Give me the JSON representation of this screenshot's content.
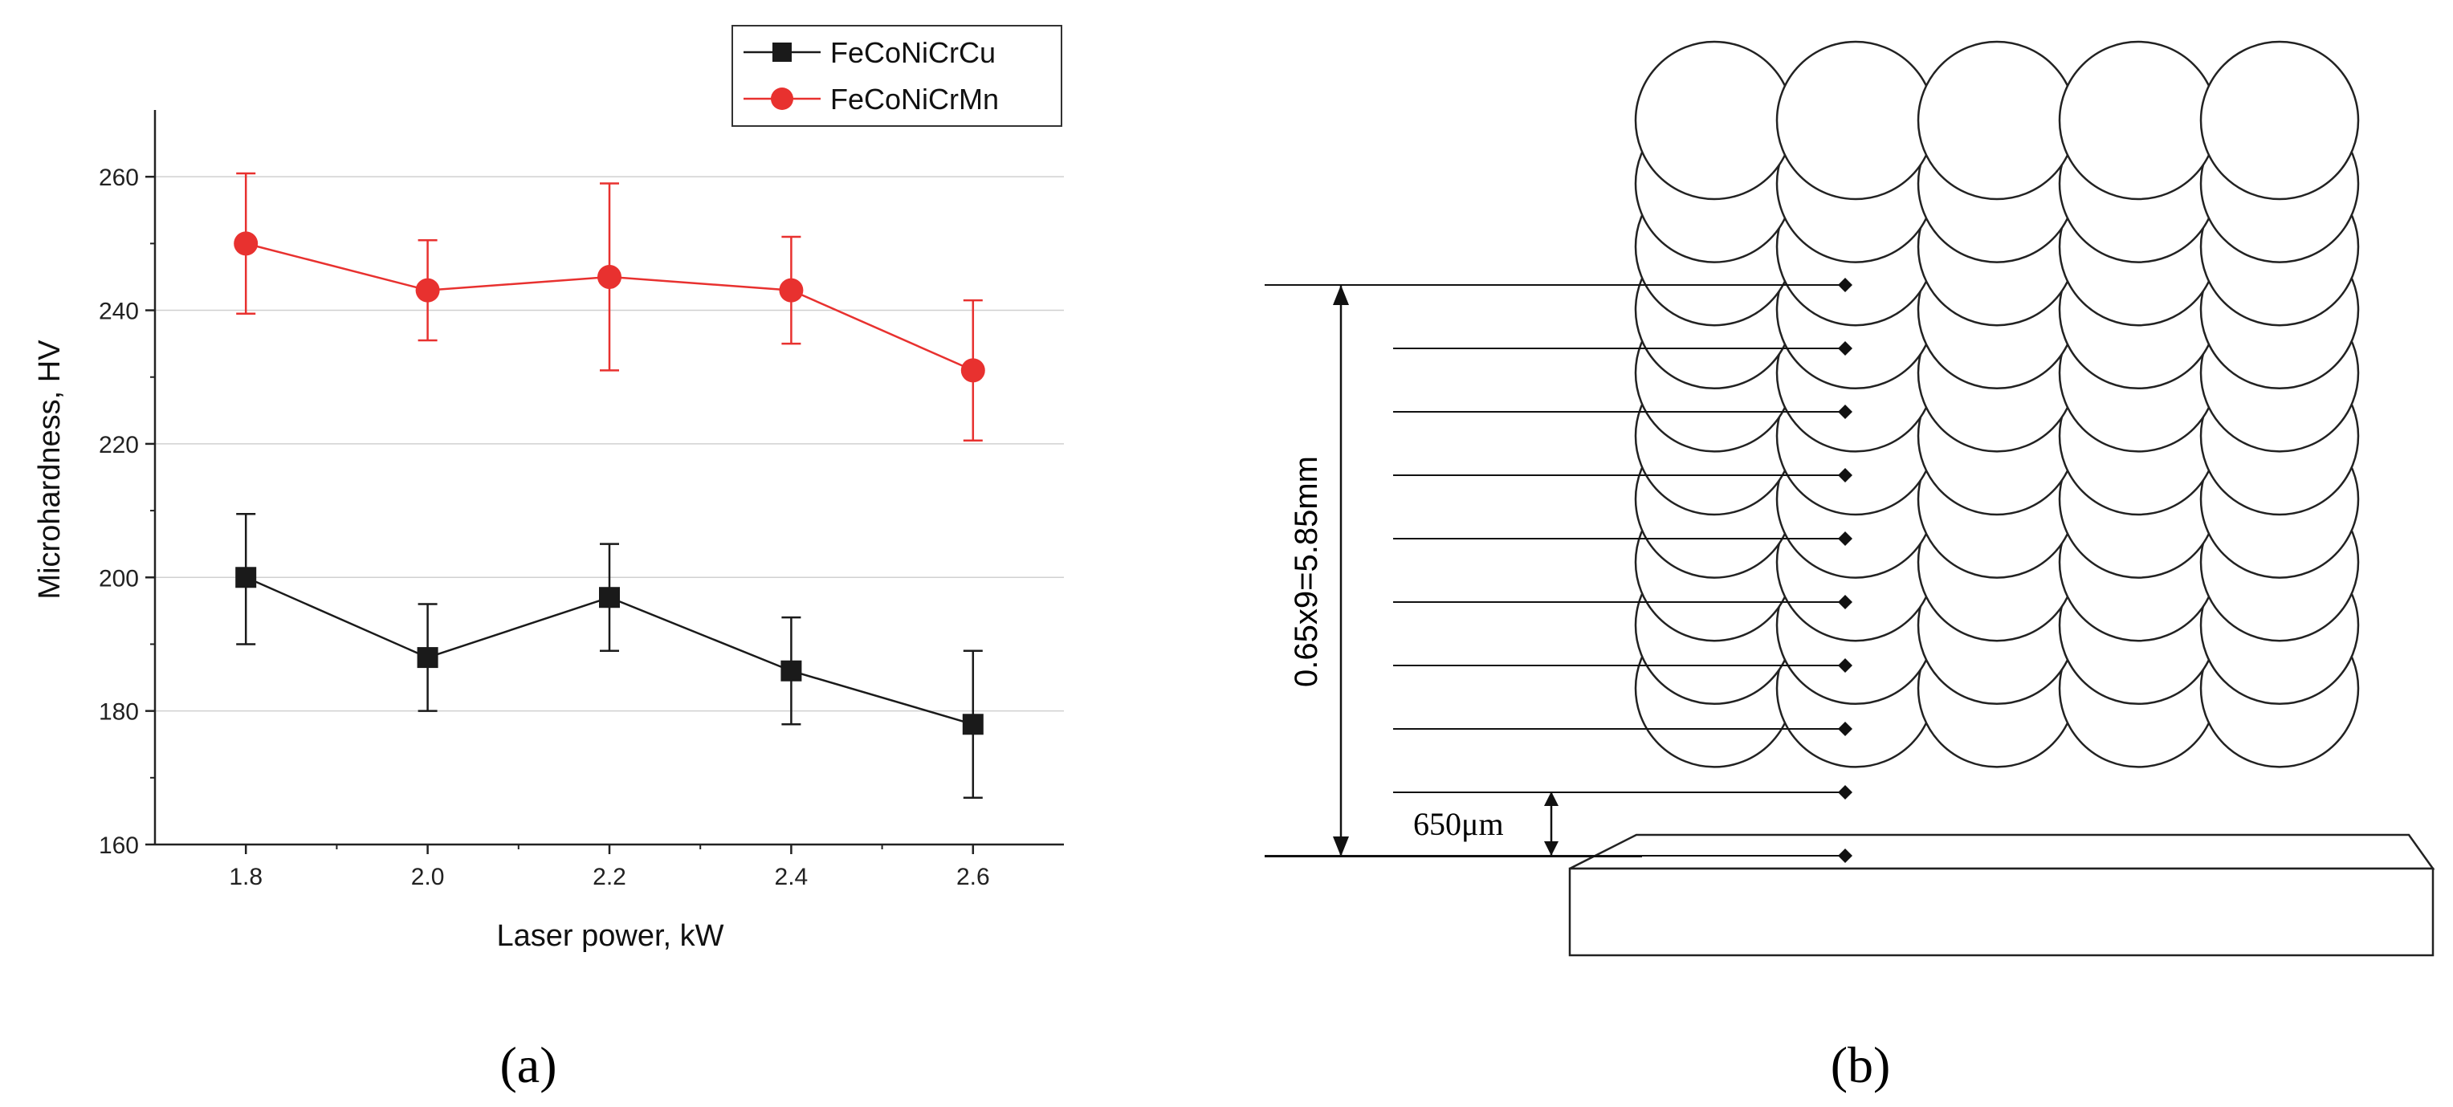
{
  "chart_data": [
    {
      "type": "line",
      "panel_label": "(a)",
      "xlabel": "Laser power, kW",
      "ylabel": "Microhardness, HV",
      "x": [
        1.8,
        2.0,
        2.2,
        2.4,
        2.6
      ],
      "x_ticks": [
        "1.8",
        "2.0",
        "2.2",
        "2.4",
        "2.6"
      ],
      "y_ticks": [
        "160",
        "180",
        "200",
        "220",
        "240",
        "260"
      ],
      "xlim": [
        1.7,
        2.7
      ],
      "ylim": [
        160,
        270
      ],
      "grid": true,
      "legend_position": "top-right",
      "series": [
        {
          "name": "FeCoNiCrCu",
          "color": "#1a1a1a",
          "marker": "square",
          "values": [
            200,
            188,
            197,
            186,
            178
          ],
          "err_low": [
            190,
            180,
            189,
            178,
            167
          ],
          "err_high": [
            209.5,
            196,
            205,
            194,
            189
          ]
        },
        {
          "name": "FeCoNiCrMn",
          "color": "#e8312f",
          "marker": "circle",
          "values": [
            250,
            243,
            245,
            243,
            231
          ],
          "err_low": [
            239.5,
            235.5,
            231,
            235,
            220.5
          ],
          "err_high": [
            260.5,
            250.5,
            259,
            251,
            241.5
          ]
        }
      ]
    }
  ],
  "diagram": {
    "panel_label": "(b)",
    "total_height_label": "0.65x9=5.85mm",
    "layer_height_label": "650μm",
    "layers": 10,
    "tracks_per_layer": 5
  }
}
